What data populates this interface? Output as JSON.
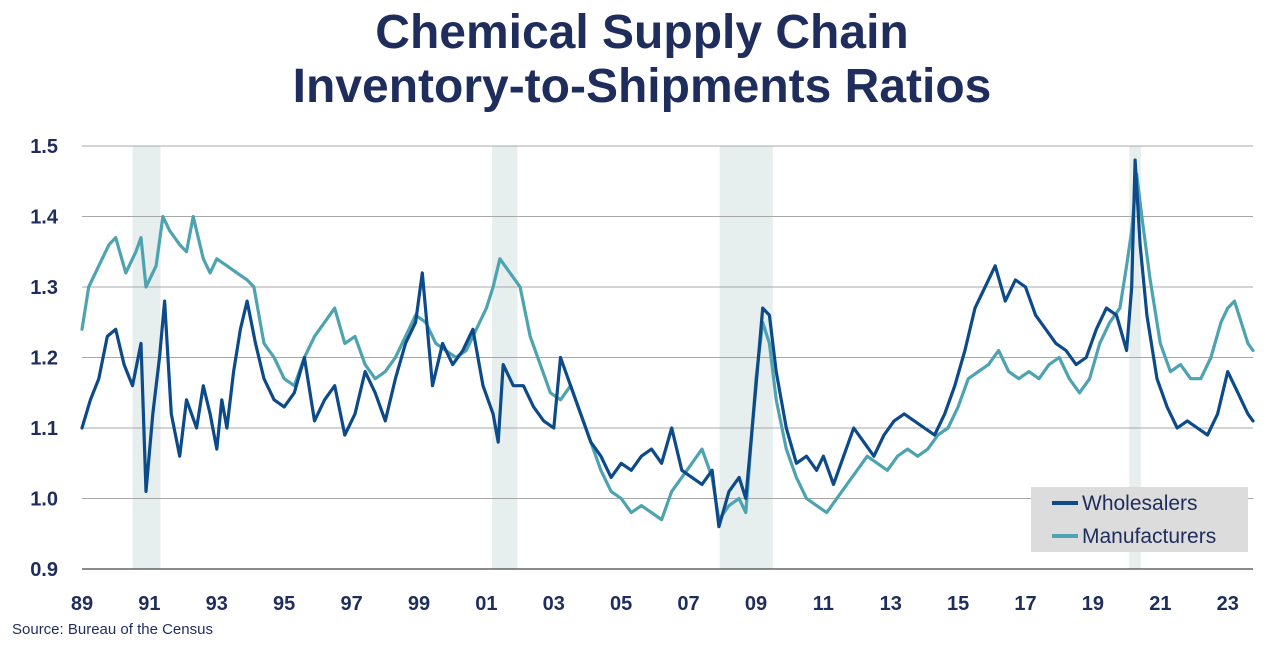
{
  "title_line1": "Chemical Supply Chain",
  "title_line2": "Inventory-to-Shipments Ratios",
  "source": "Source:  Bureau of the Census",
  "chart_data": {
    "type": "line",
    "x_unit": "year",
    "xlim": [
      1989.0,
      2023.75
    ],
    "ylim": [
      0.9,
      1.5
    ],
    "y_ticks": [
      "0.9",
      "1.0",
      "1.1",
      "1.2",
      "1.3",
      "1.4",
      "1.5"
    ],
    "x_ticks": [
      "89",
      "91",
      "93",
      "95",
      "97",
      "99",
      "01",
      "03",
      "05",
      "07",
      "09",
      "11",
      "13",
      "15",
      "17",
      "19",
      "21",
      "23"
    ],
    "grid": "horizontal",
    "legend_position": "bottom-right",
    "recessions": [
      [
        1990.5,
        1991.33
      ],
      [
        2001.17,
        2001.92
      ],
      [
        2007.92,
        2009.5
      ],
      [
        2020.08,
        2020.42
      ]
    ],
    "series": [
      {
        "name": "Wholesalers",
        "color": "#0d4a8a",
        "points": [
          [
            1989.0,
            1.1
          ],
          [
            1989.25,
            1.14
          ],
          [
            1989.5,
            1.17
          ],
          [
            1989.75,
            1.23
          ],
          [
            1990.0,
            1.24
          ],
          [
            1990.25,
            1.19
          ],
          [
            1990.5,
            1.16
          ],
          [
            1990.75,
            1.22
          ],
          [
            1990.9,
            1.01
          ],
          [
            1991.1,
            1.12
          ],
          [
            1991.3,
            1.2
          ],
          [
            1991.45,
            1.28
          ],
          [
            1991.65,
            1.12
          ],
          [
            1991.9,
            1.06
          ],
          [
            1992.1,
            1.14
          ],
          [
            1992.4,
            1.1
          ],
          [
            1992.6,
            1.16
          ],
          [
            1992.8,
            1.12
          ],
          [
            1993.0,
            1.07
          ],
          [
            1993.15,
            1.14
          ],
          [
            1993.3,
            1.1
          ],
          [
            1993.5,
            1.18
          ],
          [
            1993.7,
            1.24
          ],
          [
            1993.9,
            1.28
          ],
          [
            1994.15,
            1.22
          ],
          [
            1994.4,
            1.17
          ],
          [
            1994.7,
            1.14
          ],
          [
            1995.0,
            1.13
          ],
          [
            1995.3,
            1.15
          ],
          [
            1995.6,
            1.2
          ],
          [
            1995.9,
            1.11
          ],
          [
            1996.2,
            1.14
          ],
          [
            1996.5,
            1.16
          ],
          [
            1996.8,
            1.09
          ],
          [
            1997.1,
            1.12
          ],
          [
            1997.4,
            1.18
          ],
          [
            1997.7,
            1.15
          ],
          [
            1998.0,
            1.11
          ],
          [
            1998.3,
            1.17
          ],
          [
            1998.6,
            1.22
          ],
          [
            1998.9,
            1.25
          ],
          [
            1999.1,
            1.32
          ],
          [
            1999.4,
            1.16
          ],
          [
            1999.7,
            1.22
          ],
          [
            2000.0,
            1.19
          ],
          [
            2000.3,
            1.21
          ],
          [
            2000.6,
            1.24
          ],
          [
            2000.9,
            1.16
          ],
          [
            2001.2,
            1.12
          ],
          [
            2001.35,
            1.08
          ],
          [
            2001.5,
            1.19
          ],
          [
            2001.8,
            1.16
          ],
          [
            2002.1,
            1.16
          ],
          [
            2002.4,
            1.13
          ],
          [
            2002.7,
            1.11
          ],
          [
            2003.0,
            1.1
          ],
          [
            2003.2,
            1.2
          ],
          [
            2003.5,
            1.16
          ],
          [
            2003.8,
            1.12
          ],
          [
            2004.1,
            1.08
          ],
          [
            2004.4,
            1.06
          ],
          [
            2004.7,
            1.03
          ],
          [
            2005.0,
            1.05
          ],
          [
            2005.3,
            1.04
          ],
          [
            2005.6,
            1.06
          ],
          [
            2005.9,
            1.07
          ],
          [
            2006.2,
            1.05
          ],
          [
            2006.5,
            1.1
          ],
          [
            2006.8,
            1.04
          ],
          [
            2007.1,
            1.03
          ],
          [
            2007.4,
            1.02
          ],
          [
            2007.7,
            1.04
          ],
          [
            2007.9,
            0.96
          ],
          [
            2008.2,
            1.01
          ],
          [
            2008.5,
            1.03
          ],
          [
            2008.7,
            1.0
          ],
          [
            2009.0,
            1.16
          ],
          [
            2009.2,
            1.27
          ],
          [
            2009.4,
            1.26
          ],
          [
            2009.6,
            1.18
          ],
          [
            2009.9,
            1.1
          ],
          [
            2010.2,
            1.05
          ],
          [
            2010.5,
            1.06
          ],
          [
            2010.8,
            1.04
          ],
          [
            2011.0,
            1.06
          ],
          [
            2011.3,
            1.02
          ],
          [
            2011.6,
            1.06
          ],
          [
            2011.9,
            1.1
          ],
          [
            2012.2,
            1.08
          ],
          [
            2012.5,
            1.06
          ],
          [
            2012.8,
            1.09
          ],
          [
            2013.1,
            1.11
          ],
          [
            2013.4,
            1.12
          ],
          [
            2013.7,
            1.11
          ],
          [
            2014.0,
            1.1
          ],
          [
            2014.3,
            1.09
          ],
          [
            2014.6,
            1.12
          ],
          [
            2014.9,
            1.16
          ],
          [
            2015.2,
            1.21
          ],
          [
            2015.5,
            1.27
          ],
          [
            2015.8,
            1.3
          ],
          [
            2016.1,
            1.33
          ],
          [
            2016.4,
            1.28
          ],
          [
            2016.7,
            1.31
          ],
          [
            2017.0,
            1.3
          ],
          [
            2017.3,
            1.26
          ],
          [
            2017.6,
            1.24
          ],
          [
            2017.9,
            1.22
          ],
          [
            2018.2,
            1.21
          ],
          [
            2018.5,
            1.19
          ],
          [
            2018.8,
            1.2
          ],
          [
            2019.1,
            1.24
          ],
          [
            2019.4,
            1.27
          ],
          [
            2019.7,
            1.26
          ],
          [
            2020.0,
            1.21
          ],
          [
            2020.15,
            1.3
          ],
          [
            2020.25,
            1.48
          ],
          [
            2020.4,
            1.36
          ],
          [
            2020.6,
            1.26
          ],
          [
            2020.9,
            1.17
          ],
          [
            2021.2,
            1.13
          ],
          [
            2021.5,
            1.1
          ],
          [
            2021.8,
            1.11
          ],
          [
            2022.1,
            1.1
          ],
          [
            2022.4,
            1.09
          ],
          [
            2022.7,
            1.12
          ],
          [
            2023.0,
            1.18
          ],
          [
            2023.2,
            1.16
          ],
          [
            2023.4,
            1.14
          ],
          [
            2023.6,
            1.12
          ],
          [
            2023.75,
            1.11
          ]
        ]
      },
      {
        "name": "Manufacturers",
        "color": "#4da3b0",
        "points": [
          [
            1989.0,
            1.24
          ],
          [
            1989.2,
            1.3
          ],
          [
            1989.5,
            1.33
          ],
          [
            1989.8,
            1.36
          ],
          [
            1990.0,
            1.37
          ],
          [
            1990.3,
            1.32
          ],
          [
            1990.6,
            1.35
          ],
          [
            1990.75,
            1.37
          ],
          [
            1990.9,
            1.3
          ],
          [
            1991.2,
            1.33
          ],
          [
            1991.4,
            1.4
          ],
          [
            1991.6,
            1.38
          ],
          [
            1991.9,
            1.36
          ],
          [
            1992.1,
            1.35
          ],
          [
            1992.3,
            1.4
          ],
          [
            1992.6,
            1.34
          ],
          [
            1992.8,
            1.32
          ],
          [
            1993.0,
            1.34
          ],
          [
            1993.3,
            1.33
          ],
          [
            1993.6,
            1.32
          ],
          [
            1993.9,
            1.31
          ],
          [
            1994.1,
            1.3
          ],
          [
            1994.4,
            1.22
          ],
          [
            1994.7,
            1.2
          ],
          [
            1995.0,
            1.17
          ],
          [
            1995.3,
            1.16
          ],
          [
            1995.6,
            1.2
          ],
          [
            1995.9,
            1.23
          ],
          [
            1996.2,
            1.25
          ],
          [
            1996.5,
            1.27
          ],
          [
            1996.8,
            1.22
          ],
          [
            1997.1,
            1.23
          ],
          [
            1997.4,
            1.19
          ],
          [
            1997.7,
            1.17
          ],
          [
            1998.0,
            1.18
          ],
          [
            1998.3,
            1.2
          ],
          [
            1998.6,
            1.23
          ],
          [
            1998.9,
            1.26
          ],
          [
            1999.2,
            1.25
          ],
          [
            1999.5,
            1.22
          ],
          [
            1999.8,
            1.21
          ],
          [
            2000.1,
            1.2
          ],
          [
            2000.4,
            1.21
          ],
          [
            2000.7,
            1.24
          ],
          [
            2001.0,
            1.27
          ],
          [
            2001.2,
            1.3
          ],
          [
            2001.4,
            1.34
          ],
          [
            2001.7,
            1.32
          ],
          [
            2002.0,
            1.3
          ],
          [
            2002.3,
            1.23
          ],
          [
            2002.6,
            1.19
          ],
          [
            2002.9,
            1.15
          ],
          [
            2003.2,
            1.14
          ],
          [
            2003.5,
            1.16
          ],
          [
            2003.8,
            1.12
          ],
          [
            2004.1,
            1.08
          ],
          [
            2004.4,
            1.04
          ],
          [
            2004.7,
            1.01
          ],
          [
            2005.0,
            1.0
          ],
          [
            2005.3,
            0.98
          ],
          [
            2005.6,
            0.99
          ],
          [
            2005.9,
            0.98
          ],
          [
            2006.2,
            0.97
          ],
          [
            2006.5,
            1.01
          ],
          [
            2006.8,
            1.03
          ],
          [
            2007.1,
            1.05
          ],
          [
            2007.4,
            1.07
          ],
          [
            2007.7,
            1.03
          ],
          [
            2007.9,
            0.97
          ],
          [
            2008.2,
            0.99
          ],
          [
            2008.5,
            1.0
          ],
          [
            2008.7,
            0.98
          ],
          [
            2009.0,
            1.17
          ],
          [
            2009.2,
            1.25
          ],
          [
            2009.4,
            1.22
          ],
          [
            2009.6,
            1.14
          ],
          [
            2009.9,
            1.07
          ],
          [
            2010.2,
            1.03
          ],
          [
            2010.5,
            1.0
          ],
          [
            2010.8,
            0.99
          ],
          [
            2011.1,
            0.98
          ],
          [
            2011.4,
            1.0
          ],
          [
            2011.7,
            1.02
          ],
          [
            2012.0,
            1.04
          ],
          [
            2012.3,
            1.06
          ],
          [
            2012.6,
            1.05
          ],
          [
            2012.9,
            1.04
          ],
          [
            2013.2,
            1.06
          ],
          [
            2013.5,
            1.07
          ],
          [
            2013.8,
            1.06
          ],
          [
            2014.1,
            1.07
          ],
          [
            2014.4,
            1.09
          ],
          [
            2014.7,
            1.1
          ],
          [
            2015.0,
            1.13
          ],
          [
            2015.3,
            1.17
          ],
          [
            2015.6,
            1.18
          ],
          [
            2015.9,
            1.19
          ],
          [
            2016.2,
            1.21
          ],
          [
            2016.5,
            1.18
          ],
          [
            2016.8,
            1.17
          ],
          [
            2017.1,
            1.18
          ],
          [
            2017.4,
            1.17
          ],
          [
            2017.7,
            1.19
          ],
          [
            2018.0,
            1.2
          ],
          [
            2018.3,
            1.17
          ],
          [
            2018.6,
            1.15
          ],
          [
            2018.9,
            1.17
          ],
          [
            2019.2,
            1.22
          ],
          [
            2019.5,
            1.25
          ],
          [
            2019.8,
            1.27
          ],
          [
            2020.0,
            1.33
          ],
          [
            2020.15,
            1.38
          ],
          [
            2020.3,
            1.46
          ],
          [
            2020.45,
            1.4
          ],
          [
            2020.7,
            1.31
          ],
          [
            2021.0,
            1.22
          ],
          [
            2021.3,
            1.18
          ],
          [
            2021.6,
            1.19
          ],
          [
            2021.9,
            1.17
          ],
          [
            2022.2,
            1.17
          ],
          [
            2022.5,
            1.2
          ],
          [
            2022.8,
            1.25
          ],
          [
            2023.0,
            1.27
          ],
          [
            2023.2,
            1.28
          ],
          [
            2023.4,
            1.25
          ],
          [
            2023.6,
            1.22
          ],
          [
            2023.75,
            1.21
          ]
        ]
      }
    ]
  }
}
